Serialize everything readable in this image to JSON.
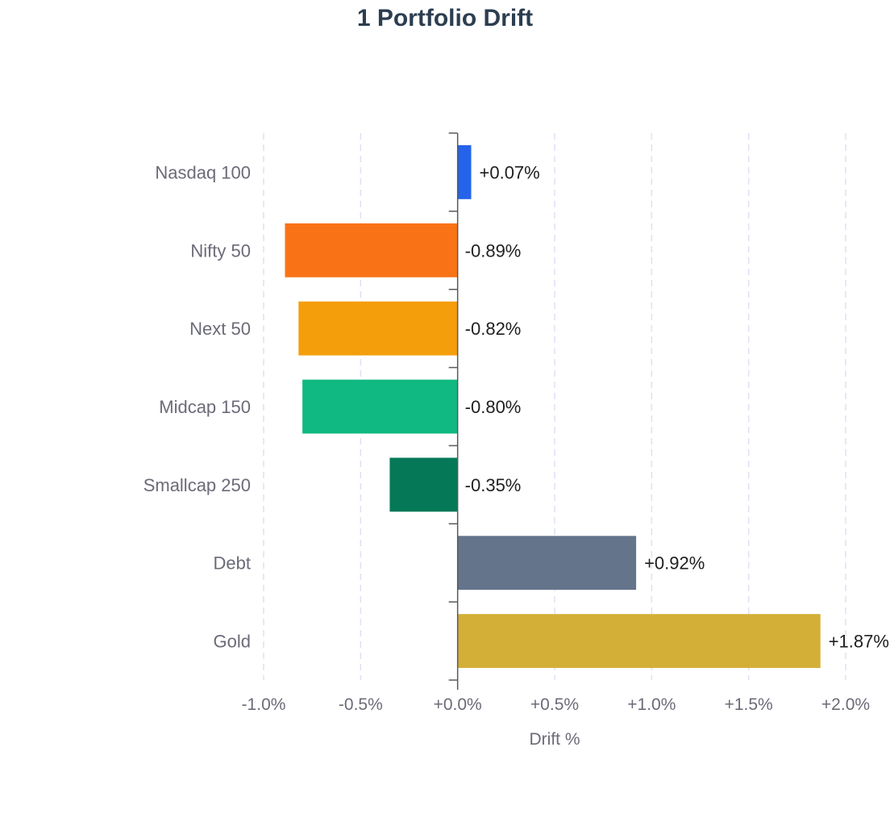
{
  "chart_data": {
    "type": "bar",
    "orientation": "horizontal",
    "title": "1 Portfolio Drift",
    "xlabel": "Drift %",
    "ylabel": "",
    "categories": [
      "Nasdaq 100",
      "Nifty 50",
      "Next 50",
      "Midcap 150",
      "Smallcap 250",
      "Debt",
      "Gold"
    ],
    "values": [
      0.07,
      -0.89,
      -0.82,
      -0.8,
      -0.35,
      0.92,
      1.87
    ],
    "data_labels": [
      "+0.07%",
      "-0.89%",
      "-0.82%",
      "-0.80%",
      "-0.35%",
      "+0.92%",
      "+1.87%"
    ],
    "colors": [
      "#2563eb",
      "#f97316",
      "#f59e0b",
      "#10b981",
      "#047857",
      "#64748b",
      "#d4af37"
    ],
    "xlim": [
      -1.0,
      2.0
    ],
    "xticks": [
      -1.0,
      -0.5,
      0.0,
      0.5,
      1.0,
      1.5,
      2.0
    ],
    "xtick_labels": [
      "-1.0%",
      "-0.5%",
      "+0.0%",
      "+0.5%",
      "+1.0%",
      "+1.5%",
      "+2.0%"
    ],
    "grid": "vertical-dashed",
    "legend": "none"
  }
}
